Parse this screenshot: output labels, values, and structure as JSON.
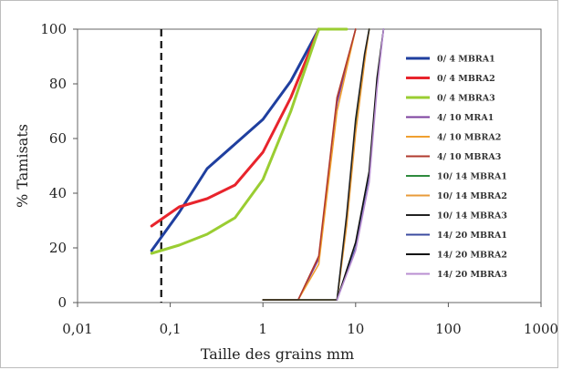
{
  "chart_data": {
    "type": "line",
    "xlabel": "Taille des grains mm",
    "ylabel": "% Tamisats",
    "xscale": "log",
    "xlim": [
      0.01,
      1000
    ],
    "ylim": [
      0,
      100
    ],
    "x_ticks": [
      "0,01",
      "0,1",
      "1",
      "10",
      "100",
      "1000"
    ],
    "y_ticks": [
      "0",
      "20",
      "40",
      "60",
      "80",
      "100"
    ],
    "grid": false,
    "legend_position": "right",
    "reference_line": {
      "x": 0.08,
      "style": "dashed"
    },
    "series": [
      {
        "name": "0/ 4 MBRA1",
        "color": "#1f3f9f",
        "width": 3,
        "points": [
          [
            0.063,
            19
          ],
          [
            0.125,
            33
          ],
          [
            0.25,
            49
          ],
          [
            0.5,
            58
          ],
          [
            1,
            67
          ],
          [
            2,
            81
          ],
          [
            4,
            100
          ]
        ]
      },
      {
        "name": "0/ 4 MBRA2",
        "color": "#e8242c",
        "width": 3,
        "points": [
          [
            0.063,
            28
          ],
          [
            0.125,
            35
          ],
          [
            0.25,
            38
          ],
          [
            0.5,
            43
          ],
          [
            1,
            55
          ],
          [
            2,
            75
          ],
          [
            4,
            100
          ]
        ]
      },
      {
        "name": "0/ 4 MBRA3",
        "color": "#9acd32",
        "width": 3,
        "points": [
          [
            0.063,
            18
          ],
          [
            0.125,
            21
          ],
          [
            0.25,
            25
          ],
          [
            0.5,
            31
          ],
          [
            1,
            45
          ],
          [
            2,
            70
          ],
          [
            4,
            100
          ],
          [
            8,
            100
          ]
        ]
      },
      {
        "name": "4/ 10 MRA1",
        "color": "#7b3f9e",
        "width": 1.6,
        "points": [
          [
            1,
            1
          ],
          [
            2.4,
            1
          ],
          [
            4,
            16
          ],
          [
            6.3,
            73
          ],
          [
            10,
            100
          ]
        ]
      },
      {
        "name": "4/ 10 MBRA2",
        "color": "#f0a030",
        "width": 1.6,
        "points": [
          [
            1,
            1
          ],
          [
            2.4,
            1
          ],
          [
            4,
            14
          ],
          [
            6.3,
            70
          ],
          [
            10,
            100
          ]
        ]
      },
      {
        "name": "4/ 10 MBRA3",
        "color": "#b03a2e",
        "width": 1.6,
        "points": [
          [
            1,
            1
          ],
          [
            2.4,
            1
          ],
          [
            4,
            17
          ],
          [
            6.3,
            75
          ],
          [
            10,
            100
          ]
        ]
      },
      {
        "name": "10/ 14 MBRA1",
        "color": "#2e8b3e",
        "width": 1.6,
        "points": [
          [
            1,
            1
          ],
          [
            6.3,
            1
          ],
          [
            8,
            30
          ],
          [
            10,
            65
          ],
          [
            12.5,
            90
          ],
          [
            14,
            100
          ]
        ]
      },
      {
        "name": "10/ 14 MBRA2",
        "color": "#e89b3a",
        "width": 1.6,
        "points": [
          [
            1,
            1
          ],
          [
            6.3,
            1
          ],
          [
            8,
            28
          ],
          [
            10,
            62
          ],
          [
            12.5,
            88
          ],
          [
            14,
            100
          ]
        ]
      },
      {
        "name": "10/ 14 MBRA3",
        "color": "#222222",
        "width": 1.6,
        "points": [
          [
            1,
            1
          ],
          [
            6.3,
            1
          ],
          [
            8,
            32
          ],
          [
            10,
            67
          ],
          [
            12.5,
            91
          ],
          [
            14,
            100
          ]
        ]
      },
      {
        "name": "14/ 20 MBRA1",
        "color": "#3b4ba0",
        "width": 1.6,
        "points": [
          [
            6.3,
            1
          ],
          [
            10,
            20
          ],
          [
            14,
            45
          ],
          [
            17,
            80
          ],
          [
            20,
            100
          ]
        ]
      },
      {
        "name": "14/ 20 MBRA2",
        "color": "#111111",
        "width": 1.6,
        "points": [
          [
            6.3,
            1
          ],
          [
            10,
            22
          ],
          [
            14,
            48
          ],
          [
            17,
            82
          ],
          [
            20,
            100
          ]
        ]
      },
      {
        "name": "14/ 20 MBRA3",
        "color": "#b98fd1",
        "width": 1.6,
        "points": [
          [
            6.3,
            1
          ],
          [
            10,
            19
          ],
          [
            14,
            44
          ],
          [
            17,
            78
          ],
          [
            20,
            100
          ]
        ]
      }
    ]
  }
}
